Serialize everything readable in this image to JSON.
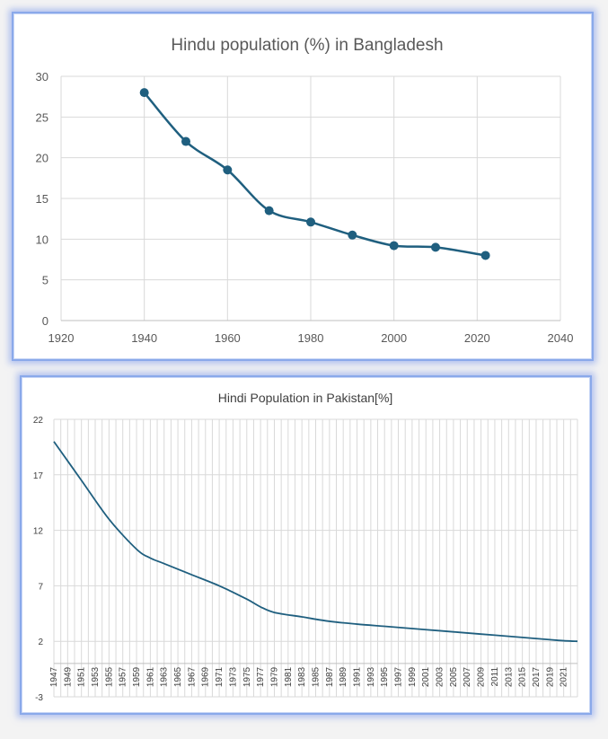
{
  "chart_data": [
    {
      "type": "line",
      "title": "Hindu population (%) in Bangladesh",
      "xlabel": "",
      "ylabel": "",
      "xlim": [
        1920,
        2040
      ],
      "ylim": [
        0,
        30
      ],
      "xticks": [
        1920,
        1940,
        1960,
        1980,
        2000,
        2020,
        2040
      ],
      "yticks": [
        0,
        5,
        10,
        15,
        20,
        25,
        30
      ],
      "grid": true,
      "markers": true,
      "line_color": "#1f5f7f",
      "x": [
        1940,
        1950,
        1960,
        1970,
        1980,
        1990,
        2000,
        2010,
        2022
      ],
      "y": [
        28,
        22,
        18.5,
        13.5,
        12.1,
        10.5,
        9.2,
        9,
        8
      ]
    },
    {
      "type": "line",
      "title": "Hindi Population in Pakistan[%]",
      "xlabel": "",
      "ylabel": "",
      "ylim": [
        -3,
        22
      ],
      "yticks": [
        -3,
        2,
        7,
        12,
        17,
        22
      ],
      "grid": true,
      "markers": false,
      "line_color": "#1f5f7f",
      "xticks": [
        "1947",
        "1949",
        "1951",
        "1953",
        "1955",
        "1957",
        "1959",
        "1961",
        "1963",
        "1965",
        "1967",
        "1969",
        "1971",
        "1973",
        "1975",
        "1977",
        "1979",
        "1981",
        "1983",
        "1985",
        "1987",
        "1989",
        "1991",
        "1993",
        "1995",
        "1997",
        "1999",
        "2001",
        "2003",
        "2005",
        "2007",
        "2009",
        "2011",
        "2013",
        "2015",
        "2017",
        "2019",
        "2021"
      ],
      "x": [
        1947,
        1951,
        1955,
        1959,
        1961,
        1963,
        1967,
        1971,
        1975,
        1977,
        1979,
        1983,
        1987,
        1991,
        1995,
        1999,
        2003,
        2007,
        2011,
        2015,
        2019,
        2021,
        2023
      ],
      "y": [
        20,
        16.5,
        13,
        10.3,
        9.5,
        9,
        8,
        7,
        5.8,
        5.1,
        4.6,
        4.2,
        3.8,
        3.55,
        3.35,
        3.15,
        2.95,
        2.75,
        2.55,
        2.35,
        2.15,
        2.05,
        2.0
      ]
    }
  ]
}
